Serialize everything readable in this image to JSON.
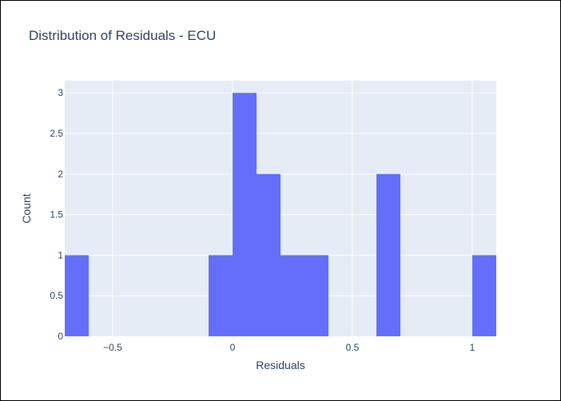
{
  "chart_data": {
    "type": "bar",
    "title": "Distribution of Residuals - ECU",
    "xlabel": "Residuals",
    "ylabel": "Count",
    "xlim": [
      -0.7,
      1.1
    ],
    "ylim": [
      0,
      3.15
    ],
    "bin_width": 0.1,
    "bins": [
      {
        "start": -0.7,
        "end": -0.6,
        "count": 1
      },
      {
        "start": -0.1,
        "end": 0.0,
        "count": 1
      },
      {
        "start": 0.0,
        "end": 0.1,
        "count": 3
      },
      {
        "start": 0.1,
        "end": 0.2,
        "count": 2
      },
      {
        "start": 0.2,
        "end": 0.3,
        "count": 1
      },
      {
        "start": 0.3,
        "end": 0.4,
        "count": 1
      },
      {
        "start": 0.6,
        "end": 0.7,
        "count": 2
      },
      {
        "start": 1.0,
        "end": 1.1,
        "count": 1
      }
    ],
    "x_ticks": [
      {
        "value": -0.5,
        "label": "−0.5"
      },
      {
        "value": 0,
        "label": "0"
      },
      {
        "value": 0.5,
        "label": "0.5"
      },
      {
        "value": 1,
        "label": "1"
      }
    ],
    "y_ticks": [
      {
        "value": 0,
        "label": "0"
      },
      {
        "value": 0.5,
        "label": "0.5"
      },
      {
        "value": 1,
        "label": "1"
      },
      {
        "value": 1.5,
        "label": "1.5"
      },
      {
        "value": 2,
        "label": "2"
      },
      {
        "value": 2.5,
        "label": "2.5"
      },
      {
        "value": 3,
        "label": "3"
      }
    ],
    "grid": true,
    "colors": {
      "bar": "#636efa",
      "plot_bg": "#e5ecf6",
      "grid": "#ffffff",
      "text": "#2a3f5f"
    }
  }
}
